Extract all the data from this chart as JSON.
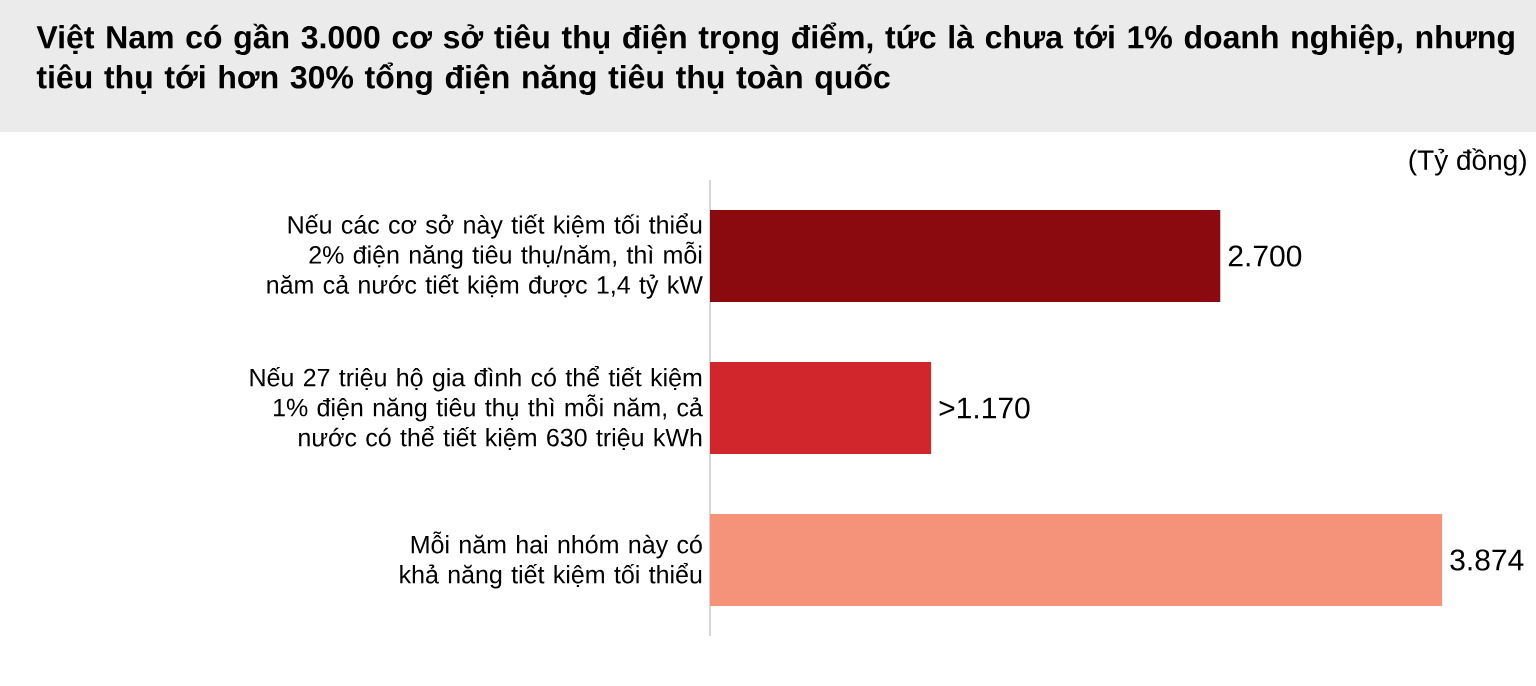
{
  "chart_data": {
    "type": "bar",
    "orientation": "horizontal",
    "title": "Việt Nam có gần 3.000 cơ sở tiêu thụ điện trọng điểm, tức là chưa tới 1% doanh nghiệp, nhưng tiêu thụ tới hơn 30% tổng điện năng tiêu thụ toàn quốc",
    "annotations": [
      "(Tỷ đồng)"
    ],
    "categories": [
      "Nếu các cơ sở này tiết kiệm tối thiểu 2% điện năng tiêu thụ/năm, thì mỗi năm cả nước tiết kiệm được 1,4 tỷ kW",
      "Nếu 27 triệu hộ gia đình có thể tiết kiệm 1% điện năng tiêu thụ thì mỗi năm, cả nước có thể tiết kiệm 630 triệu kWh",
      "Mỗi năm hai nhóm này có khả năng tiết kiệm tối thiểu"
    ],
    "values": [
      2700,
      1170,
      3874
    ],
    "value_labels": [
      "2.700",
      ">1.170",
      "3.874"
    ],
    "colors": [
      "#8b0a0f",
      "#d1262c",
      "#f4937a"
    ]
  }
}
